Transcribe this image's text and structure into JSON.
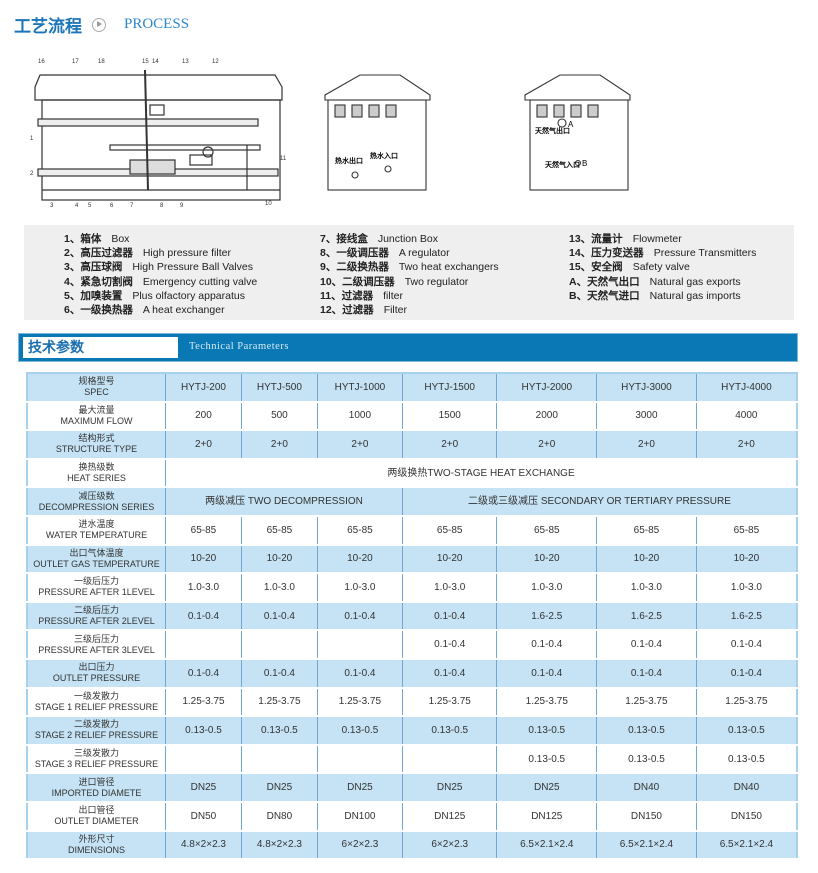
{
  "header": {
    "title_cn": "工艺流程",
    "title_en": "PROCESS",
    "icon": "play-circle-icon"
  },
  "diagram": {
    "callouts": [
      "16",
      "17",
      "18",
      "15",
      "14",
      "13",
      "12",
      "1",
      "2",
      "3",
      "4",
      "5",
      "6",
      "7",
      "8",
      "9",
      "10",
      "11"
    ],
    "box2": {
      "hot_water_out": "热水出口",
      "hot_water_in": "热水入口"
    },
    "box3": {
      "gas_out": "天然气出口",
      "gas_in": "天然气入口",
      "a": "A",
      "b": "B"
    }
  },
  "legend": {
    "columns": [
      [
        {
          "cn": "1、箱体",
          "en": "Box"
        },
        {
          "cn": "2、高压过滤器",
          "en": "High pressure filter"
        },
        {
          "cn": "3、高压球阀",
          "en": "High Pressure Ball Valves"
        },
        {
          "cn": "4、紧急切割阀",
          "en": "Emergency cutting valve"
        },
        {
          "cn": "5、加嗅装置",
          "en": "Plus olfactory apparatus"
        },
        {
          "cn": "6、一级换热器",
          "en": "A heat exchanger"
        }
      ],
      [
        {
          "cn": "7、接线盒",
          "en": "Junction Box"
        },
        {
          "cn": "8、一级调压器",
          "en": "A regulator"
        },
        {
          "cn": "9、二级换热器",
          "en": "Two heat exchangers"
        },
        {
          "cn": "10、二级调压器",
          "en": "Two regulator"
        },
        {
          "cn": "11、过滤器",
          "en": "filter"
        },
        {
          "cn": "12、过滤器",
          "en": "Filter"
        }
      ],
      [
        {
          "cn": "13、流量计",
          "en": "Flowmeter"
        },
        {
          "cn": "14、压力变送器",
          "en": "Pressure Transmitters"
        },
        {
          "cn": "15、安全阀",
          "en": "Safety valve"
        },
        {
          "cn": "A、天然气出口",
          "en": "Natural gas exports"
        },
        {
          "cn": "B、天然气进口",
          "en": "Natural gas imports"
        }
      ]
    ]
  },
  "section": {
    "title_cn": "技术参数",
    "title_en": "Technical Parameters"
  },
  "colors": {
    "accent": "#0a78b4",
    "row_blue": "#c5e3f4",
    "title": "#1b75b8"
  },
  "table": {
    "rows": [
      {
        "cn": "规格型号",
        "en": "SPEC",
        "cells": [
          "HYTJ-200",
          "HYTJ-500",
          "HYTJ-1000",
          "HYTJ-1500",
          "HYTJ-2000",
          "HYTJ-3000",
          "HYTJ-4000"
        ]
      },
      {
        "cn": "最大流量",
        "en": "MAXIMUM FLOW",
        "cells": [
          "200",
          "500",
          "1000",
          "1500",
          "2000",
          "3000",
          "4000"
        ]
      },
      {
        "cn": "结构形式",
        "en": "STRUCTURE TYPE",
        "cells": [
          "2+0",
          "2+0",
          "2+0",
          "2+0",
          "2+0",
          "2+0",
          "2+0"
        ]
      },
      {
        "cn": "换热级数",
        "en": "HEAT SERIES",
        "cells": [
          {
            "text": "两级换热TWO-STAGE HEAT EXCHANGE",
            "span": 7
          }
        ]
      },
      {
        "cn": "减压级数",
        "en": "DECOMPRESSION SERIES",
        "cells": [
          {
            "text": "两级减压   TWO DECOMPRESSION",
            "span": 3
          },
          {
            "text": "二级或三级减压   SECONDARY OR TERTIARY PRESSURE",
            "span": 4
          }
        ]
      },
      {
        "cn": "进水温度",
        "en": "WATER TEMPERATURE",
        "cells": [
          "65-85",
          "65-85",
          "65-85",
          "65-85",
          "65-85",
          "65-85",
          "65-85"
        ]
      },
      {
        "cn": "出口气体温度",
        "en": "OUTLET GAS TEMPERATURE",
        "cells": [
          "10-20",
          "10-20",
          "10-20",
          "10-20",
          "10-20",
          "10-20",
          "10-20"
        ]
      },
      {
        "cn": "一级后压力",
        "en": "PRESSURE AFTER 1LEVEL",
        "cells": [
          "1.0-3.0",
          "1.0-3.0",
          "1.0-3.0",
          "1.0-3.0",
          "1.0-3.0",
          "1.0-3.0",
          "1.0-3.0"
        ]
      },
      {
        "cn": "二级后压力",
        "en": "PRESSURE AFTER 2LEVEL",
        "cells": [
          "0.1-0.4",
          "0.1-0.4",
          "0.1-0.4",
          "0.1-0.4",
          "1.6-2.5",
          "1.6-2.5",
          "1.6-2.5"
        ]
      },
      {
        "cn": "三级后压力",
        "en": "PRESSURE AFTER 3LEVEL",
        "cells": [
          "",
          "",
          "",
          "0.1-0.4",
          "0.1-0.4",
          "0.1-0.4",
          "0.1-0.4"
        ]
      },
      {
        "cn": "出口压力",
        "en": "OUTLET PRESSURE",
        "cells": [
          "0.1-0.4",
          "0.1-0.4",
          "0.1-0.4",
          "0.1-0.4",
          "0.1-0.4",
          "0.1-0.4",
          "0.1-0.4"
        ]
      },
      {
        "cn": "一级发散力",
        "en": "STAGE 1 RELIEF PRESSURE",
        "cells": [
          "1.25-3.75",
          "1.25-3.75",
          "1.25-3.75",
          "1.25-3.75",
          "1.25-3.75",
          "1.25-3.75",
          "1.25-3.75"
        ]
      },
      {
        "cn": "二级发散力",
        "en": "STAGE 2 RELIEF PRESSURE",
        "cells": [
          "0.13-0.5",
          "0.13-0.5",
          "0.13-0.5",
          "0.13-0.5",
          "0.13-0.5",
          "0.13-0.5",
          "0.13-0.5"
        ]
      },
      {
        "cn": "三级发散力",
        "en": "STAGE 3 RELIEF PRESSURE",
        "cells": [
          "",
          "",
          "",
          "",
          "0.13-0.5",
          "0.13-0.5",
          "0.13-0.5"
        ]
      },
      {
        "cn": "进口管径",
        "en": "IMPORTED DIAMETE",
        "cells": [
          "DN25",
          "DN25",
          "DN25",
          "DN25",
          "DN25",
          "DN40",
          "DN40"
        ]
      },
      {
        "cn": "出口管径",
        "en": "OUTLET DIAMETER",
        "cells": [
          "DN50",
          "DN80",
          "DN100",
          "DN125",
          "DN125",
          "DN150",
          "DN150"
        ]
      },
      {
        "cn": "外形尺寸",
        "en": "DIMENSIONS",
        "cells": [
          "4.8×2×2.3",
          "4.8×2×2.3",
          "6×2×2.3",
          "6×2×2.3",
          "6.5×2.1×2.4",
          "6.5×2.1×2.4",
          "6.5×2.1×2.4"
        ]
      }
    ]
  }
}
